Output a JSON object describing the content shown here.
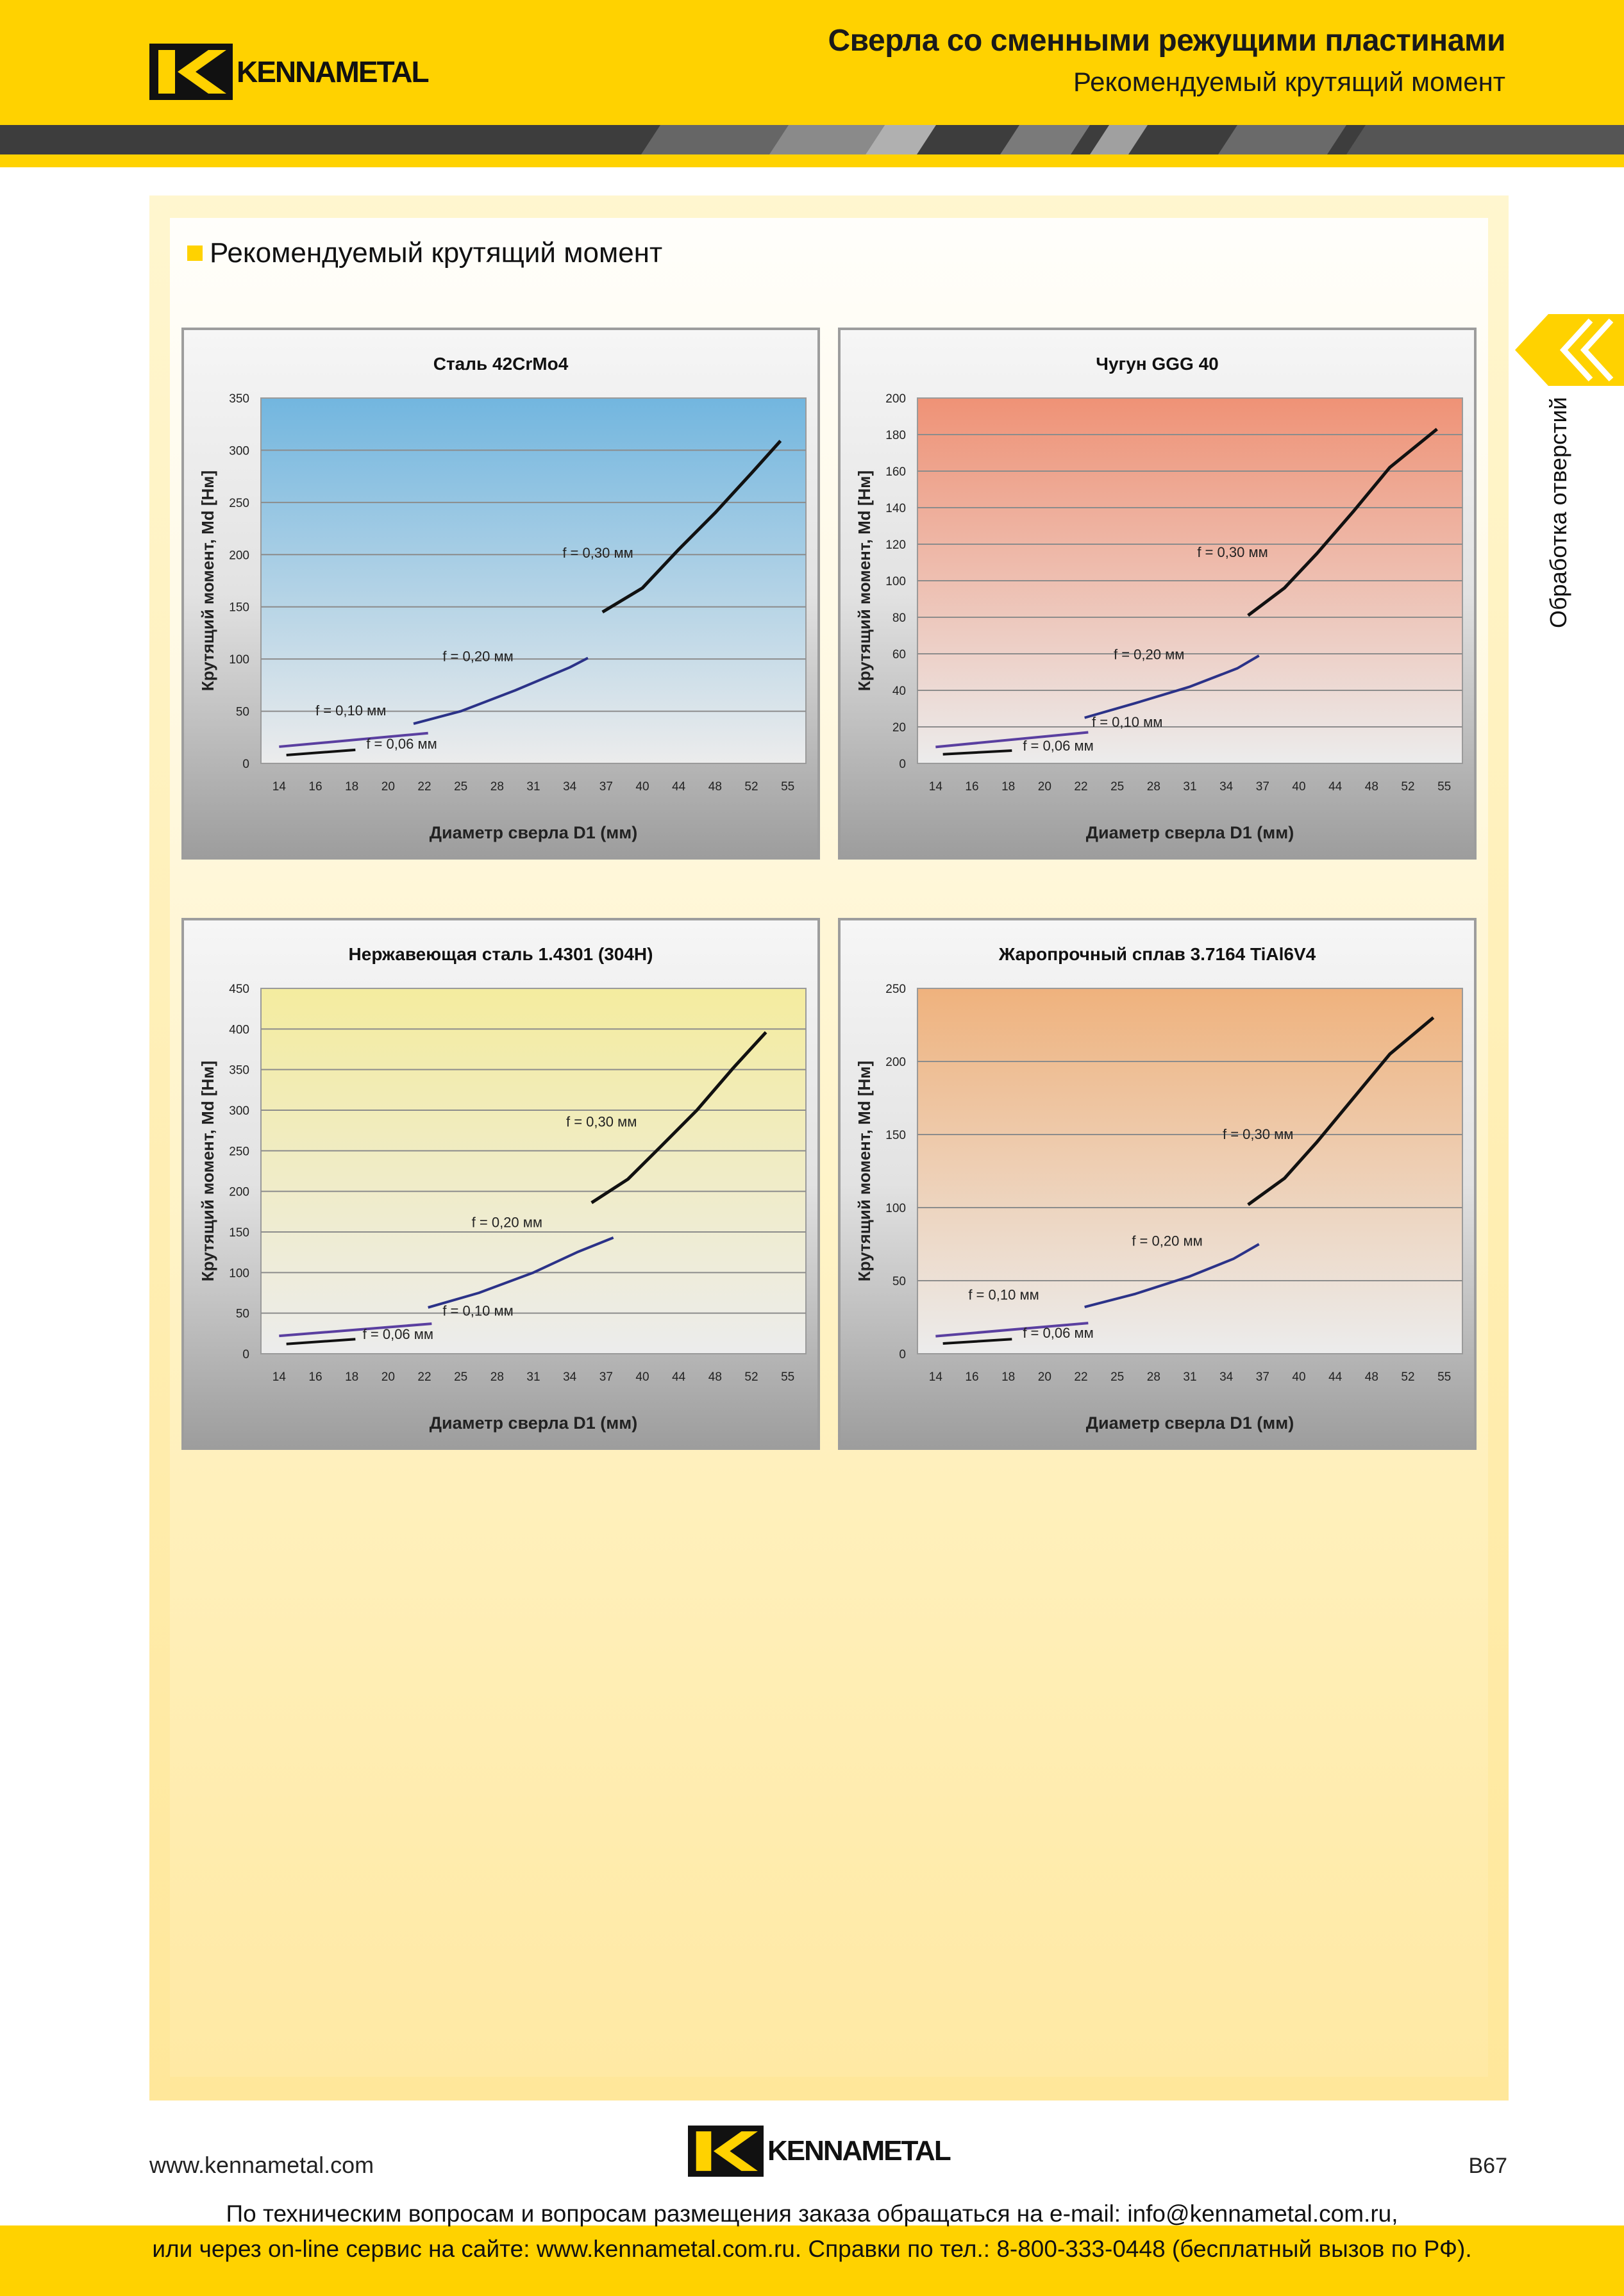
{
  "header": {
    "brand": "KENNAMETAL",
    "title": "Сверла со сменными режущими пластинами",
    "subtitle": "Рекомендуемый крутящий момент"
  },
  "section": {
    "title": "Рекомендуемый крутящий момент"
  },
  "side_tab": {
    "label": "Обработка отверстий",
    "icon": "double-chevron-left-icon"
  },
  "colors": {
    "brand_yellow": "#FFD200",
    "steel_bg": "#72b6df",
    "cast_iron_bg": "#ef9276",
    "stainless_bg": "#f4ec9f",
    "superalloy_bg": "#efb27d",
    "line_dark": "#111111",
    "line_navy": "#2b3288",
    "line_purple": "#5a3fa0"
  },
  "chart_data": [
    {
      "type": "line",
      "title": "Сталь 42CrMo4",
      "xlabel": "Диаметр сверла D1 (мм)",
      "ylabel": "Крутящий момент, Md [Нм]",
      "categories": [
        "14",
        "16",
        "18",
        "20",
        "22",
        "25",
        "28",
        "31",
        "34",
        "37",
        "40",
        "44",
        "48",
        "52",
        "55"
      ],
      "yticks": [
        "0",
        "50",
        "100",
        "150",
        "200",
        "250",
        "300",
        "350"
      ],
      "ylim": [
        0,
        350
      ],
      "grid": true,
      "series": [
        {
          "name": "f = 0,06 мм",
          "x": [
            0.2,
            2.1
          ],
          "y": [
            8,
            13
          ]
        },
        {
          "name": "f = 0,10 мм",
          "x": [
            0.0,
            4.1
          ],
          "y": [
            16,
            29
          ]
        },
        {
          "name": "f = 0,20 мм",
          "x": [
            3.7,
            5.0,
            6.5,
            8.0,
            8.5
          ],
          "y": [
            38,
            50,
            70,
            92,
            101
          ]
        },
        {
          "name": "f = 0,30 мм",
          "x": [
            8.9,
            10.0,
            11.0,
            12.0,
            13.0,
            13.8
          ],
          "y": [
            145,
            168,
            205,
            240,
            278,
            309
          ]
        }
      ],
      "labels": [
        {
          "text": "f = 0,06 мм",
          "x": 2.4,
          "y": 14
        },
        {
          "text": "f = 0,10 мм",
          "x": 1.0,
          "y": 46
        },
        {
          "text": "f = 0,20 мм",
          "x": 4.5,
          "y": 98
        },
        {
          "text": "f = 0,30 мм",
          "x": 7.8,
          "y": 197
        }
      ]
    },
    {
      "type": "line",
      "title": "Чугун GGG 40",
      "xlabel": "Диаметр сверла D1 (мм)",
      "ylabel": "Крутящий момент, Md [Нм]",
      "categories": [
        "14",
        "16",
        "18",
        "20",
        "22",
        "25",
        "28",
        "31",
        "34",
        "37",
        "40",
        "44",
        "48",
        "52",
        "55"
      ],
      "yticks": [
        "0",
        "20",
        "40",
        "60",
        "80",
        "100",
        "120",
        "140",
        "160",
        "180",
        "200"
      ],
      "ylim": [
        0,
        200
      ],
      "grid": true,
      "series": [
        {
          "name": "f = 0,06 мм",
          "x": [
            0.2,
            2.1
          ],
          "y": [
            5,
            7
          ]
        },
        {
          "name": "f = 0,10 мм",
          "x": [
            0.0,
            4.2
          ],
          "y": [
            9,
            17
          ]
        },
        {
          "name": "f = 0,20 мм",
          "x": [
            4.1,
            5.5,
            7.0,
            8.3,
            8.9
          ],
          "y": [
            25,
            33,
            42,
            52,
            59
          ]
        },
        {
          "name": "f = 0,30 мм",
          "x": [
            8.6,
            9.6,
            10.5,
            11.5,
            12.5,
            13.8
          ],
          "y": [
            81,
            96,
            115,
            138,
            162,
            183
          ]
        }
      ],
      "labels": [
        {
          "text": "f = 0,06 мм",
          "x": 2.4,
          "y": 7
        },
        {
          "text": "f = 0,10 мм",
          "x": 4.3,
          "y": 20
        },
        {
          "text": "f = 0,20 мм",
          "x": 4.9,
          "y": 57
        },
        {
          "text": "f = 0,30 мм",
          "x": 7.2,
          "y": 113
        }
      ]
    },
    {
      "type": "line",
      "title": "Нержавеющая сталь 1.4301 (304H)",
      "xlabel": "Диаметр сверла D1 (мм)",
      "ylabel": "Крутящий момент, Md [Нм]",
      "categories": [
        "14",
        "16",
        "18",
        "20",
        "22",
        "25",
        "28",
        "31",
        "34",
        "37",
        "40",
        "44",
        "48",
        "52",
        "55"
      ],
      "yticks": [
        "0",
        "50",
        "100",
        "150",
        "200",
        "250",
        "300",
        "350",
        "400",
        "450"
      ],
      "ylim": [
        0,
        450
      ],
      "grid": true,
      "series": [
        {
          "name": "f = 0,06 мм",
          "x": [
            0.2,
            2.1
          ],
          "y": [
            12,
            18
          ]
        },
        {
          "name": "f = 0,10 мм",
          "x": [
            0.0,
            4.2
          ],
          "y": [
            22,
            37
          ]
        },
        {
          "name": "f = 0,20 мм",
          "x": [
            4.1,
            5.5,
            7.0,
            8.2,
            9.2
          ],
          "y": [
            57,
            75,
            100,
            125,
            143
          ]
        },
        {
          "name": "f = 0,30 мм",
          "x": [
            8.6,
            9.6,
            10.5,
            11.5,
            12.5,
            13.4
          ],
          "y": [
            186,
            215,
            255,
            300,
            352,
            396
          ]
        }
      ],
      "labels": [
        {
          "text": "f = 0,06 мм",
          "x": 2.3,
          "y": 18
        },
        {
          "text": "f = 0,10 мм",
          "x": 4.5,
          "y": 47
        },
        {
          "text": "f = 0,20 мм",
          "x": 5.3,
          "y": 156
        },
        {
          "text": "f = 0,30 мм",
          "x": 7.9,
          "y": 280
        }
      ]
    },
    {
      "type": "line",
      "title": "Жаропрочный сплав 3.7164 TiAl6V4",
      "xlabel": "Диаметр сверла D1 (мм)",
      "ylabel": "Крутящий момент, Md [Нм]",
      "categories": [
        "14",
        "16",
        "18",
        "20",
        "22",
        "25",
        "28",
        "31",
        "34",
        "37",
        "40",
        "44",
        "48",
        "52",
        "55"
      ],
      "yticks": [
        "0",
        "50",
        "100",
        "150",
        "200",
        "250"
      ],
      "ylim": [
        0,
        250
      ],
      "grid": true,
      "series": [
        {
          "name": "f = 0,06 мм",
          "x": [
            0.2,
            2.1
          ],
          "y": [
            7,
            10
          ]
        },
        {
          "name": "f = 0,10 мм",
          "x": [
            0.0,
            4.2
          ],
          "y": [
            12,
            21
          ]
        },
        {
          "name": "f = 0,20 мм",
          "x": [
            4.1,
            5.5,
            7.0,
            8.2,
            8.9
          ],
          "y": [
            32,
            41,
            53,
            65,
            75
          ]
        },
        {
          "name": "f = 0,30 мм",
          "x": [
            8.6,
            9.6,
            10.5,
            11.5,
            12.5,
            13.7
          ],
          "y": [
            102,
            120,
            145,
            175,
            205,
            230
          ]
        }
      ],
      "labels": [
        {
          "text": "f = 0,06 мм",
          "x": 2.4,
          "y": 11
        },
        {
          "text": "f = 0,10 мм",
          "x": 0.9,
          "y": 37
        },
        {
          "text": "f = 0,20 мм",
          "x": 5.4,
          "y": 74
        },
        {
          "text": "f = 0,30 мм",
          "x": 7.9,
          "y": 147
        }
      ]
    }
  ],
  "footer": {
    "url": "www.kennametal.com",
    "brand": "KENNAMETAL",
    "page": "B67",
    "contact_line1": "По техническим вопросам и вопросам размещения заказа обращаться на e-mail: info@kennametal.com.ru,",
    "contact_line2": "или через on-line сервис на сайте: www.kennametal.com.ru. Справки по тел.: 8-800-333-0448 (бесплатный вызов по РФ)."
  }
}
